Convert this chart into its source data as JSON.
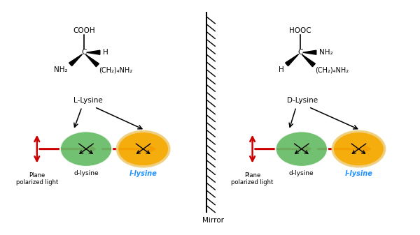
{
  "bg_color": "#ffffff",
  "mirror_label": "Mirror",
  "left_label": "L-Lysine",
  "right_label": "D-Lysine",
  "left_cooh": "COOH",
  "right_cooh": "HOOC",
  "nh2": "NH₂",
  "h": "H",
  "c": "C",
  "left_chain": "(CH₂)₄NH₂",
  "right_chain": "(CH₂)₄NH₂",
  "d_lysine_label": "d-lysine",
  "l_lysine_label": "l-lysine",
  "plane_label1": "Plane",
  "plane_label2": "polarized light",
  "l_lysine_color": "#1e90ff",
  "green_color": "#66bb66",
  "yellow_color": "#f5a800",
  "yellow_edge": "#f0d080",
  "arrow_color": "#cc0000",
  "black": "#000000",
  "xlim": [
    0,
    10
  ],
  "ylim": [
    0,
    5.6
  ],
  "figw": 6.0,
  "figh": 3.37,
  "dpi": 100
}
